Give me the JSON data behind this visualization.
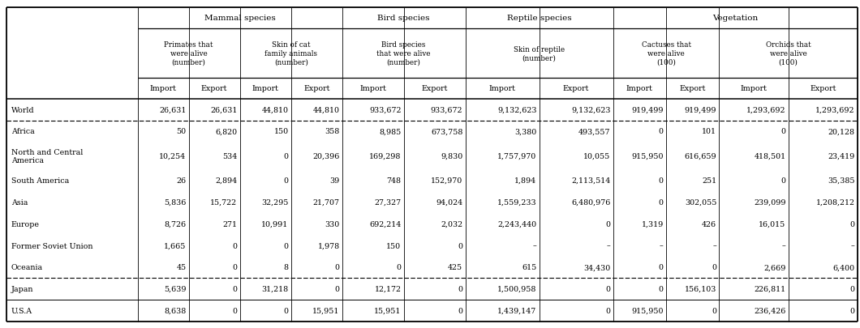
{
  "col_widths_raw": [
    1.38,
    0.54,
    0.54,
    0.54,
    0.54,
    0.65,
    0.65,
    0.78,
    0.78,
    0.56,
    0.56,
    0.73,
    0.73
  ],
  "subcats": [
    [
      1,
      2,
      "Primates that\nwere alive\n(number)"
    ],
    [
      3,
      4,
      "Skin of cat\nfamily animals\n(number)"
    ],
    [
      5,
      6,
      "Bird species\nthat were alive\n(number)"
    ],
    [
      7,
      8,
      "Skin of reptile\n(number)"
    ],
    [
      9,
      10,
      "Cactuses that\nwere alive\n(100)"
    ],
    [
      11,
      12,
      "Orchids that\nwere alive\n(100)"
    ]
  ],
  "cat_spans": [
    [
      1,
      4,
      "Mammal species"
    ],
    [
      5,
      6,
      "Bird species"
    ],
    [
      7,
      8,
      "Reptile species"
    ],
    [
      9,
      12,
      "Vegetation"
    ]
  ],
  "rows": [
    [
      "World",
      "26,631",
      "26,631",
      "44,810",
      "44,810",
      "933,672",
      "933,672",
      "9,132,623",
      "9,132,623",
      "919,499",
      "919,499",
      "1,293,692",
      "1,293,692"
    ],
    [
      "Africa",
      "50",
      "6,820",
      "150",
      "358",
      "8,985",
      "673,758",
      "3,380",
      "493,557",
      "0",
      "101",
      "0",
      "20,128"
    ],
    [
      "North and Central\nAmerica",
      "10,254",
      "534",
      "0",
      "20,396",
      "169,298",
      "9,830",
      "1,757,970",
      "10,055",
      "915,950",
      "616,659",
      "418,501",
      "23,419"
    ],
    [
      "South America",
      "26",
      "2,894",
      "0",
      "39",
      "748",
      "152,970",
      "1,894",
      "2,113,514",
      "0",
      "251",
      "0",
      "35,385"
    ],
    [
      "Asia",
      "5,836",
      "15,722",
      "32,295",
      "21,707",
      "27,327",
      "94,024",
      "1,559,233",
      "6,480,976",
      "0",
      "302,055",
      "239,099",
      "1,208,212"
    ],
    [
      "Europe",
      "8,726",
      "271",
      "10,991",
      "330",
      "692,214",
      "2,032",
      "2,243,440",
      "0",
      "1,319",
      "426",
      "16,015",
      "0"
    ],
    [
      "Former Soviet Union",
      "1,665",
      "0",
      "0",
      "1,978",
      "150",
      "0",
      "–",
      "–",
      "–",
      "–",
      "–",
      "–"
    ],
    [
      "Oceania",
      "45",
      "0",
      "8",
      "0",
      "0",
      "425",
      "615",
      "34,430",
      "0",
      "0",
      "2,669",
      "6,400"
    ],
    [
      "Japan",
      "5,639",
      "0",
      "31,218",
      "0",
      "12,172",
      "0",
      "1,500,958",
      "0",
      "0",
      "156,103",
      "226,811",
      "0"
    ],
    [
      "U.S.A",
      "8,638",
      "0",
      "0",
      "15,951",
      "15,951",
      "0",
      "1,439,147",
      "0",
      "915,950",
      "0",
      "236,426",
      "0"
    ]
  ],
  "bg": "#ffffff"
}
